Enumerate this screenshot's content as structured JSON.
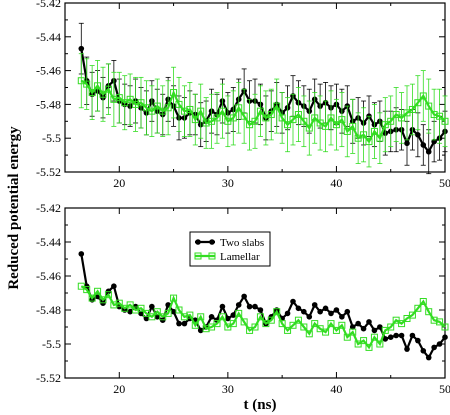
{
  "figure": {
    "ylabel": "Reduced potential  energy",
    "xlabel": "t (ns)"
  },
  "chart_data": [
    {
      "type": "line",
      "title": "",
      "xlabel": "",
      "ylabel": "Reduced potential  energy",
      "xlim": [
        15,
        50
      ],
      "ylim": [
        -5.52,
        -5.42
      ],
      "x_ticks": [
        20,
        30,
        40,
        50
      ],
      "y_ticks": [
        "-5.42",
        "-5.44",
        "-5.46",
        "-5.48",
        "-5.5",
        "-5.52"
      ],
      "grid": false,
      "series": [
        {
          "name": "Two slabs",
          "color": "#000000",
          "marker": "filled-circle",
          "error_bars": true,
          "x": [
            16.5,
            17,
            17.5,
            18,
            18.5,
            19,
            19.5,
            20,
            20.5,
            21,
            21.5,
            22,
            22.5,
            23,
            23.5,
            24,
            24.5,
            25,
            25.5,
            26,
            26.5,
            27,
            27.5,
            28,
            28.5,
            29,
            29.5,
            30,
            30.5,
            31,
            31.5,
            32,
            32.5,
            33,
            33.5,
            34,
            34.5,
            35,
            35.5,
            36,
            36.5,
            37,
            37.5,
            38,
            38.5,
            39,
            39.5,
            40,
            40.5,
            41,
            41.5,
            42,
            42.5,
            43,
            43.5,
            44,
            44.5,
            45,
            45.5,
            46,
            46.5,
            47,
            47.5,
            48,
            48.5,
            49,
            49.5,
            50
          ],
          "values": [
            -5.447,
            -5.466,
            -5.474,
            -5.472,
            -5.476,
            -5.469,
            -5.466,
            -5.478,
            -5.48,
            -5.481,
            -5.478,
            -5.482,
            -5.485,
            -5.478,
            -5.484,
            -5.486,
            -5.477,
            -5.481,
            -5.488,
            -5.488,
            -5.485,
            -5.486,
            -5.492,
            -5.49,
            -5.484,
            -5.486,
            -5.478,
            -5.485,
            -5.483,
            -5.477,
            -5.472,
            -5.478,
            -5.478,
            -5.48,
            -5.488,
            -5.484,
            -5.48,
            -5.485,
            -5.482,
            -5.475,
            -5.479,
            -5.481,
            -5.484,
            -5.477,
            -5.481,
            -5.479,
            -5.482,
            -5.48,
            -5.484,
            -5.481,
            -5.49,
            -5.488,
            -5.491,
            -5.487,
            -5.492,
            -5.49,
            -5.497,
            -5.496,
            -5.495,
            -5.495,
            -5.503,
            -5.495,
            -5.498,
            -5.504,
            -5.508,
            -5.502,
            -5.5,
            -5.496
          ],
          "error": [
            0.015,
            0.014,
            0.013,
            0.012,
            0.012,
            0.013,
            0.012,
            0.013,
            0.012,
            0.012,
            0.013,
            0.012,
            0.013,
            0.012,
            0.013,
            0.012,
            0.013,
            0.012,
            0.013,
            0.012,
            0.013,
            0.012,
            0.013,
            0.012,
            0.013,
            0.012,
            0.013,
            0.012,
            0.013,
            0.012,
            0.013,
            0.012,
            0.013,
            0.012,
            0.013,
            0.012,
            0.013,
            0.012,
            0.013,
            0.012,
            0.013,
            0.012,
            0.013,
            0.012,
            0.013,
            0.012,
            0.013,
            0.012,
            0.013,
            0.012,
            0.013,
            0.012,
            0.013,
            0.012,
            0.013,
            0.012,
            0.013,
            0.012,
            0.013,
            0.012,
            0.013,
            0.012,
            0.013,
            0.012,
            0.013,
            0.012,
            0.013,
            0.012
          ]
        },
        {
          "name": "Lamellar",
          "color": "#33dd22",
          "marker": "open-square",
          "error_bars": true,
          "x": [
            16.5,
            17,
            17.5,
            18,
            18.5,
            19,
            19.5,
            20,
            20.5,
            21,
            21.5,
            22,
            22.5,
            23,
            23.5,
            24,
            24.5,
            25,
            25.5,
            26,
            26.5,
            27,
            27.5,
            28,
            28.5,
            29,
            29.5,
            30,
            30.5,
            31,
            31.5,
            32,
            32.5,
            33,
            33.5,
            34,
            34.5,
            35,
            35.5,
            36,
            36.5,
            37,
            37.5,
            38,
            38.5,
            39,
            39.5,
            40,
            40.5,
            41,
            41.5,
            42,
            42.5,
            43,
            43.5,
            44,
            44.5,
            45,
            45.5,
            46,
            46.5,
            47,
            47.5,
            48,
            48.5,
            49,
            49.5,
            50
          ],
          "values": [
            -5.466,
            -5.468,
            -5.473,
            -5.469,
            -5.474,
            -5.471,
            -5.477,
            -5.476,
            -5.479,
            -5.477,
            -5.48,
            -5.479,
            -5.482,
            -5.484,
            -5.481,
            -5.484,
            -5.482,
            -5.473,
            -5.48,
            -5.484,
            -5.483,
            -5.489,
            -5.484,
            -5.491,
            -5.49,
            -5.488,
            -5.484,
            -5.49,
            -5.488,
            -5.482,
            -5.487,
            -5.492,
            -5.49,
            -5.484,
            -5.488,
            -5.486,
            -5.481,
            -5.488,
            -5.492,
            -5.489,
            -5.486,
            -5.49,
            -5.494,
            -5.488,
            -5.491,
            -5.493,
            -5.488,
            -5.492,
            -5.489,
            -5.496,
            -5.493,
            -5.5,
            -5.498,
            -5.502,
            -5.496,
            -5.5,
            -5.492,
            -5.49,
            -5.486,
            -5.488,
            -5.485,
            -5.483,
            -5.479,
            -5.475,
            -5.481,
            -5.486,
            -5.487,
            -5.49
          ],
          "error": [
            0.016,
            0.015,
            0.016,
            0.015,
            0.016,
            0.015,
            0.016,
            0.015,
            0.016,
            0.015,
            0.016,
            0.015,
            0.016,
            0.015,
            0.016,
            0.015,
            0.016,
            0.015,
            0.016,
            0.015,
            0.016,
            0.015,
            0.016,
            0.015,
            0.016,
            0.015,
            0.016,
            0.015,
            0.016,
            0.015,
            0.016,
            0.015,
            0.016,
            0.015,
            0.016,
            0.015,
            0.016,
            0.015,
            0.016,
            0.015,
            0.016,
            0.015,
            0.016,
            0.015,
            0.016,
            0.015,
            0.016,
            0.015,
            0.016,
            0.015,
            0.016,
            0.015,
            0.016,
            0.015,
            0.016,
            0.015,
            0.016,
            0.015,
            0.016,
            0.015,
            0.016,
            0.015,
            0.016,
            0.015,
            0.016,
            0.015,
            0.016,
            0.015
          ]
        }
      ]
    },
    {
      "type": "line",
      "title": "",
      "xlabel": "t (ns)",
      "ylabel": "Reduced potential  energy",
      "xlim": [
        15,
        50
      ],
      "ylim": [
        -5.52,
        -5.42
      ],
      "x_ticks": [
        20,
        30,
        40,
        50
      ],
      "y_ticks": [
        "-5.42",
        "-5.44",
        "-5.46",
        "-5.48",
        "-5.5",
        "-5.52"
      ],
      "grid": false,
      "legend": {
        "position": "upper-left",
        "entries": [
          "Two slabs",
          "Lamellar"
        ]
      },
      "series": [
        {
          "name": "Two slabs",
          "color": "#000000",
          "marker": "filled-circle",
          "error_bars": false,
          "x": [
            16.5,
            17,
            17.5,
            18,
            18.5,
            19,
            19.5,
            20,
            20.5,
            21,
            21.5,
            22,
            22.5,
            23,
            23.5,
            24,
            24.5,
            25,
            25.5,
            26,
            26.5,
            27,
            27.5,
            28,
            28.5,
            29,
            29.5,
            30,
            30.5,
            31,
            31.5,
            32,
            32.5,
            33,
            33.5,
            34,
            34.5,
            35,
            35.5,
            36,
            36.5,
            37,
            37.5,
            38,
            38.5,
            39,
            39.5,
            40,
            40.5,
            41,
            41.5,
            42,
            42.5,
            43,
            43.5,
            44,
            44.5,
            45,
            45.5,
            46,
            46.5,
            47,
            47.5,
            48,
            48.5,
            49,
            49.5,
            50
          ],
          "values": [
            -5.447,
            -5.466,
            -5.474,
            -5.472,
            -5.476,
            -5.469,
            -5.466,
            -5.478,
            -5.48,
            -5.481,
            -5.478,
            -5.482,
            -5.485,
            -5.478,
            -5.484,
            -5.486,
            -5.477,
            -5.481,
            -5.488,
            -5.488,
            -5.485,
            -5.486,
            -5.492,
            -5.49,
            -5.484,
            -5.486,
            -5.478,
            -5.485,
            -5.483,
            -5.477,
            -5.472,
            -5.478,
            -5.478,
            -5.48,
            -5.488,
            -5.484,
            -5.48,
            -5.485,
            -5.482,
            -5.475,
            -5.479,
            -5.481,
            -5.484,
            -5.477,
            -5.481,
            -5.479,
            -5.482,
            -5.48,
            -5.484,
            -5.481,
            -5.49,
            -5.488,
            -5.491,
            -5.487,
            -5.492,
            -5.49,
            -5.497,
            -5.496,
            -5.495,
            -5.495,
            -5.503,
            -5.495,
            -5.498,
            -5.504,
            -5.508,
            -5.502,
            -5.5,
            -5.496
          ]
        },
        {
          "name": "Lamellar",
          "color": "#33dd22",
          "marker": "open-square",
          "error_bars": false,
          "x": [
            16.5,
            17,
            17.5,
            18,
            18.5,
            19,
            19.5,
            20,
            20.5,
            21,
            21.5,
            22,
            22.5,
            23,
            23.5,
            24,
            24.5,
            25,
            25.5,
            26,
            26.5,
            27,
            27.5,
            28,
            28.5,
            29,
            29.5,
            30,
            30.5,
            31,
            31.5,
            32,
            32.5,
            33,
            33.5,
            34,
            34.5,
            35,
            35.5,
            36,
            36.5,
            37,
            37.5,
            38,
            38.5,
            39,
            39.5,
            40,
            40.5,
            41,
            41.5,
            42,
            42.5,
            43,
            43.5,
            44,
            44.5,
            45,
            45.5,
            46,
            46.5,
            47,
            47.5,
            48,
            48.5,
            49,
            49.5,
            50
          ],
          "values": [
            -5.466,
            -5.468,
            -5.473,
            -5.469,
            -5.474,
            -5.471,
            -5.477,
            -5.476,
            -5.479,
            -5.477,
            -5.48,
            -5.479,
            -5.482,
            -5.484,
            -5.481,
            -5.484,
            -5.482,
            -5.473,
            -5.48,
            -5.484,
            -5.483,
            -5.489,
            -5.484,
            -5.491,
            -5.49,
            -5.488,
            -5.484,
            -5.49,
            -5.488,
            -5.482,
            -5.487,
            -5.492,
            -5.49,
            -5.484,
            -5.488,
            -5.486,
            -5.481,
            -5.488,
            -5.492,
            -5.489,
            -5.486,
            -5.49,
            -5.494,
            -5.488,
            -5.491,
            -5.493,
            -5.488,
            -5.492,
            -5.489,
            -5.496,
            -5.493,
            -5.5,
            -5.498,
            -5.502,
            -5.496,
            -5.5,
            -5.492,
            -5.49,
            -5.486,
            -5.488,
            -5.485,
            -5.483,
            -5.479,
            -5.475,
            -5.481,
            -5.486,
            -5.487,
            -5.49
          ]
        }
      ]
    }
  ]
}
